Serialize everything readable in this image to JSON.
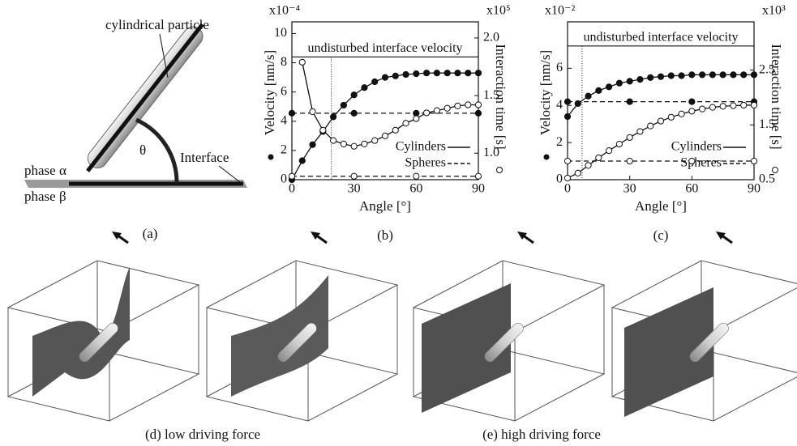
{
  "panels": {
    "a": {
      "caption": "(a)",
      "particle": "cylindrical particle",
      "phase_alpha": "phase α",
      "angle": "θ",
      "interface": "Interface",
      "phase_beta": "phase β"
    },
    "d": {
      "caption": "(d) low driving force"
    },
    "e": {
      "caption": "(e) high driving force"
    }
  },
  "chart_data": [
    {
      "type": "line",
      "panel_label": "(b)",
      "xlabel": "Angle [°]",
      "ylabel": "Velocity [nm/s]",
      "y2label": "Interaction time [s]",
      "y_scale": "x10⁻⁴",
      "y2_scale": "x10⁵",
      "xlim": [
        0,
        90
      ],
      "xticks": [
        0,
        30,
        60,
        90
      ],
      "ylim": [
        0,
        10.8
      ],
      "yticks": [
        0,
        2,
        4,
        6,
        8,
        10
      ],
      "y2lim": [
        0.77,
        2.14
      ],
      "y2ticks": [
        {
          "value": 1,
          "label": "1.0"
        },
        1.5,
        {
          "value": 2,
          "label": "2.0"
        }
      ],
      "reference": {
        "label": "undisturbed interface velocity",
        "value": 8.4
      },
      "marker_line_x": 19,
      "legend_loc": "lower right",
      "series": [
        {
          "name": "Cylinders",
          "axis": "y",
          "marker": "filled",
          "dash": false,
          "color": "#111",
          "x": [
            0,
            5,
            10,
            15,
            20,
            25,
            30,
            35,
            40,
            45,
            50,
            55,
            60,
            65,
            70,
            75,
            80,
            85,
            90
          ],
          "values": [
            0,
            1.3,
            2.4,
            3.3,
            4.3,
            5.1,
            5.8,
            6.3,
            6.7,
            7.0,
            7.1,
            7.2,
            7.25,
            7.3,
            7.3,
            7.3,
            7.3,
            7.3,
            7.3
          ]
        },
        {
          "name": "Spheres",
          "axis": "y",
          "marker": "filled",
          "dash": true,
          "color": "#111",
          "x": [
            0,
            30,
            60,
            90
          ],
          "values": [
            4.55,
            4.55,
            4.55,
            4.55
          ]
        },
        {
          "name": "Cylinders",
          "axis": "y2",
          "marker": "open",
          "dash": false,
          "color": "#111",
          "x": [
            5,
            10,
            15,
            20,
            25,
            30,
            35,
            40,
            45,
            50,
            55,
            60,
            65,
            70,
            75,
            80,
            85,
            90
          ],
          "values": [
            1.79,
            1.36,
            1.2,
            1.11,
            1.08,
            1.06,
            1.08,
            1.11,
            1.15,
            1.2,
            1.26,
            1.3,
            1.35,
            1.37,
            1.39,
            1.41,
            1.42,
            1.42
          ]
        },
        {
          "name": "Spheres",
          "axis": "y2",
          "marker": "open",
          "dash": true,
          "color": "#111",
          "x": [
            0,
            30,
            60,
            90
          ],
          "values": [
            0.8,
            0.8,
            0.8,
            0.8
          ]
        }
      ]
    },
    {
      "type": "line",
      "panel_label": "(c)",
      "xlabel": "Angle [°]",
      "ylabel": "Velocity [nm/s]",
      "y2label": "Interaction time [s]",
      "y_scale": "x10⁻²",
      "y2_scale": "x10³",
      "xlim": [
        0,
        90
      ],
      "xticks": [
        0,
        30,
        60,
        90
      ],
      "ylim": [
        0,
        8.5
      ],
      "yticks": [
        0,
        2,
        4,
        6
      ],
      "y2lim": [
        0.5,
        3.38
      ],
      "y2ticks": [
        0.5,
        1.5,
        2.5
      ],
      "reference": {
        "label": "undisturbed interface velocity",
        "value": 7.2
      },
      "marker_line_x": 7,
      "legend_loc": "lower right",
      "series": [
        {
          "name": "Cylinders",
          "axis": "y",
          "marker": "filled",
          "dash": false,
          "color": "#111",
          "x": [
            0,
            5,
            10,
            15,
            20,
            25,
            30,
            35,
            40,
            45,
            50,
            55,
            60,
            65,
            70,
            75,
            80,
            85,
            90
          ],
          "values": [
            3.4,
            4.1,
            4.5,
            4.8,
            5.0,
            5.2,
            5.3,
            5.4,
            5.5,
            5.55,
            5.6,
            5.6,
            5.65,
            5.65,
            5.65,
            5.65,
            5.65,
            5.65,
            5.65
          ]
        },
        {
          "name": "Spheres",
          "axis": "y",
          "marker": "filled",
          "dash": true,
          "color": "#111",
          "x": [
            0,
            30,
            60,
            90
          ],
          "values": [
            4.2,
            4.2,
            4.2,
            4.2
          ]
        },
        {
          "name": "Cylinders",
          "axis": "y2",
          "marker": "open",
          "dash": false,
          "color": "#111",
          "x": [
            0,
            5,
            10,
            15,
            20,
            25,
            30,
            35,
            40,
            45,
            50,
            55,
            60,
            65,
            70,
            75,
            80,
            85,
            90
          ],
          "values": [
            0.53,
            0.62,
            0.76,
            0.9,
            1.03,
            1.15,
            1.27,
            1.38,
            1.48,
            1.57,
            1.64,
            1.7,
            1.75,
            1.79,
            1.82,
            1.84,
            1.85,
            1.86,
            1.86
          ]
        },
        {
          "name": "Spheres",
          "axis": "y2",
          "marker": "open",
          "dash": true,
          "color": "#111",
          "x": [
            0,
            30,
            60,
            90
          ],
          "values": [
            0.84,
            0.84,
            0.84,
            0.84
          ]
        }
      ]
    }
  ]
}
